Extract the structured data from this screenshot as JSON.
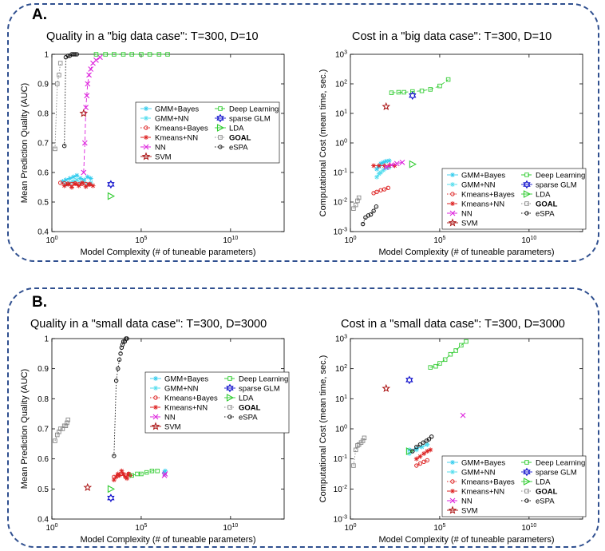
{
  "panels": [
    {
      "letter": "A.",
      "charts": [
        {
          "type": "scatter",
          "title": "Quality in a \"big data case\": T=300, D=10",
          "xlabel": "Model Complexity (# of tuneable parameters)",
          "ylabel": "Mean Prediction Quality (AUC)",
          "xscale": "log",
          "xlim": [
            1,
            10000000000000
          ],
          "xticks": [
            "10^0",
            "10^5",
            "10^10"
          ],
          "yscale": "linear",
          "ylim": [
            0.4,
            1.0
          ],
          "yticks": [
            "0.4",
            "0.5",
            "0.6",
            "0.7",
            "0.8",
            "0.9",
            "1"
          ],
          "legend_position": "center-right",
          "series": [
            {
              "name": "GMM+Bayes",
              "x": [
                4,
                6,
                10,
                16,
                25,
                40,
                63,
                100,
                150
              ],
              "y": [
                0.57,
                0.575,
                0.58,
                0.585,
                0.59,
                0.58,
                0.575,
                0.585,
                0.58
              ]
            },
            {
              "name": "GMM+NN",
              "x": [
                6,
                10,
                16,
                25,
                40,
                63,
                100,
                150
              ],
              "y": [
                0.56,
                0.565,
                0.57,
                0.575,
                0.565,
                0.57,
                0.56,
                0.565
              ]
            },
            {
              "name": "Kmeans+Bayes",
              "x": [
                3,
                5,
                8,
                13,
                20,
                32,
                50,
                80,
                130
              ],
              "y": [
                0.565,
                0.563,
                0.562,
                0.561,
                0.563,
                0.56,
                0.562,
                0.561,
                0.56
              ]
            },
            {
              "name": "Kmeans+NN",
              "x": [
                5,
                8,
                13,
                20,
                32,
                50,
                80,
                130,
                200
              ],
              "y": [
                0.555,
                0.56,
                0.55,
                0.562,
                0.555,
                0.565,
                0.552,
                0.56,
                0.555
              ]
            },
            {
              "name": "NN",
              "x": [
                60,
                70,
                80,
                90,
                100,
                120,
                150,
                200,
                300,
                500
              ],
              "y": [
                0.6,
                0.7,
                0.82,
                0.86,
                0.9,
                0.93,
                0.95,
                0.97,
                0.98,
                0.99
              ]
            },
            {
              "name": "SVM",
              "x": [
                60
              ],
              "y": [
                0.8
              ]
            },
            {
              "name": "Deep Learning",
              "x": [
                300,
                1000,
                3000,
                10000,
                30000,
                100000,
                300000,
                1000000,
                3000000
              ],
              "y": [
                1.0,
                1.0,
                1.0,
                1.0,
                1.0,
                1.0,
                1.0,
                1.0,
                1.0
              ]
            },
            {
              "name": "sparse GLM",
              "x": [
                2000
              ],
              "y": [
                0.56
              ]
            },
            {
              "name": "LDA",
              "x": [
                2000
              ],
              "y": [
                0.52
              ]
            },
            {
              "name": "GOAL",
              "x": [
                1.5,
                2,
                2.5,
                3
              ],
              "y": [
                0.68,
                0.9,
                0.93,
                0.97
              ]
            },
            {
              "name": "eSPA",
              "x": [
                5,
                6,
                8,
                10,
                13,
                16,
                20,
                25
              ],
              "y": [
                0.69,
                0.99,
                0.995,
                0.995,
                1.0,
                1.0,
                1.0,
                1.0
              ]
            }
          ]
        },
        {
          "type": "scatter",
          "title": "Cost in a \"big data case\": T=300, D=10",
          "xlabel": "Model Complexity (# of tuneable parameters)",
          "ylabel": "Computational Cost (mean time, sec.)",
          "xscale": "log",
          "xlim": [
            1,
            10000000000000
          ],
          "xticks": [
            "10^0",
            "10^5",
            "10^10"
          ],
          "yscale": "log",
          "ylim": [
            0.001,
            1000
          ],
          "yticks": [
            "10^-3",
            "10^-2",
            "10^-1",
            "10^0",
            "10^1",
            "10^2",
            "10^3"
          ],
          "legend_position": "bottom-center",
          "series": [
            {
              "name": "GMM+Bayes",
              "x": [
                30,
                40,
                50,
                70,
                100,
                150
              ],
              "y": [
                0.13,
                0.16,
                0.2,
                0.22,
                0.24,
                0.25
              ]
            },
            {
              "name": "GMM+NN",
              "x": [
                30,
                40,
                50,
                70,
                100,
                150
              ],
              "y": [
                0.07,
                0.09,
                0.1,
                0.12,
                0.14,
                0.15
              ]
            },
            {
              "name": "Kmeans+Bayes",
              "x": [
                20,
                30,
                50,
                80,
                130
              ],
              "y": [
                0.02,
                0.022,
                0.025,
                0.027,
                0.03
              ]
            },
            {
              "name": "Kmeans+NN",
              "x": [
                20,
                40,
                80,
                150,
                300
              ],
              "y": [
                0.17,
                0.17,
                0.17,
                0.17,
                0.17
              ]
            },
            {
              "name": "NN",
              "x": [
                100,
                200,
                400,
                800
              ],
              "y": [
                0.15,
                0.18,
                0.2,
                0.22
              ]
            },
            {
              "name": "SVM",
              "x": [
                100
              ],
              "y": [
                17
              ]
            },
            {
              "name": "Deep Learning",
              "x": [
                200,
                500,
                1000,
                3000,
                10000,
                30000,
                100000,
                300000
              ],
              "y": [
                50,
                52,
                52,
                55,
                58,
                65,
                85,
                140
              ]
            },
            {
              "name": "sparse GLM",
              "x": [
                3000
              ],
              "y": [
                40
              ]
            },
            {
              "name": "LDA",
              "x": [
                3000
              ],
              "y": [
                0.19
              ]
            },
            {
              "name": "GOAL",
              "x": [
                1.5,
                2,
                2.5,
                3
              ],
              "y": [
                0.006,
                0.008,
                0.011,
                0.014
              ]
            },
            {
              "name": "eSPA",
              "x": [
                5,
                7,
                10,
                14,
                20,
                28
              ],
              "y": [
                0.0018,
                0.003,
                0.0035,
                0.0038,
                0.005,
                0.007
              ]
            }
          ]
        }
      ]
    },
    {
      "letter": "B.",
      "charts": [
        {
          "type": "scatter",
          "title": "Quality in a \"small data case\": T=300, D=3000",
          "xlabel": "Model Complexity (# of tuneable parameters)",
          "ylabel": "Mean Prediction Quality (AUC)",
          "xscale": "log",
          "xlim": [
            1,
            10000000000000
          ],
          "xticks": [
            "10^0",
            "10^5",
            "10^10"
          ],
          "yscale": "linear",
          "ylim": [
            0.4,
            1.0
          ],
          "yticks": [
            "0.4",
            "0.5",
            "0.6",
            "0.7",
            "0.8",
            "0.9",
            "1"
          ],
          "legend_position": "center-right",
          "series": [
            {
              "name": "GMM+Bayes",
              "x": [
                2000000,
                2200000
              ],
              "y": [
                0.555,
                0.56
              ]
            },
            {
              "name": "GMM+NN",
              "x": [
                2000000
              ],
              "y": [
                0.55
              ]
            },
            {
              "name": "Kmeans+Bayes",
              "x": [
                3000,
                5000,
                8000,
                13000,
                20000
              ],
              "y": [
                0.54,
                0.545,
                0.55,
                0.545,
                0.55
              ]
            },
            {
              "name": "Kmeans+NN",
              "x": [
                3000,
                4000,
                5000,
                6000,
                8000,
                10000,
                13000,
                16000,
                20000,
                25000
              ],
              "y": [
                0.53,
                0.54,
                0.55,
                0.545,
                0.56,
                0.55,
                0.54,
                0.535,
                0.55,
                0.545
              ]
            },
            {
              "name": "NN",
              "x": [
                2000000,
                2200000
              ],
              "y": [
                0.545,
                0.55
              ]
            },
            {
              "name": "SVM",
              "x": [
                100
              ],
              "y": [
                0.505
              ]
            },
            {
              "name": "Deep Learning",
              "x": [
                30000,
                60000,
                100000,
                200000,
                400000,
                800000
              ],
              "y": [
                0.545,
                0.55,
                0.55,
                0.555,
                0.56,
                0.56
              ]
            },
            {
              "name": "sparse GLM",
              "x": [
                2000
              ],
              "y": [
                0.47
              ]
            },
            {
              "name": "LDA",
              "x": [
                2000
              ],
              "y": [
                0.5
              ]
            },
            {
              "name": "GOAL",
              "x": [
                1.5,
                2,
                2.5,
                3,
                4,
                5,
                6,
                7,
                8
              ],
              "y": [
                0.66,
                0.68,
                0.69,
                0.7,
                0.7,
                0.71,
                0.71,
                0.72,
                0.73
              ]
            },
            {
              "name": "eSPA",
              "x": [
                3000,
                4000,
                5000,
                6000,
                7000,
                8000,
                9000,
                10000,
                12000,
                14000,
                16000
              ],
              "y": [
                0.61,
                0.86,
                0.9,
                0.93,
                0.95,
                0.97,
                0.98,
                0.99,
                0.99,
                1.0,
                1.0
              ]
            }
          ]
        },
        {
          "type": "scatter",
          "title": "Cost in a \"small data case\": T=300, D=3000",
          "xlabel": "Model Complexity (# of tuneable parameters)",
          "ylabel": "Computational Cost (mean time, sec.)",
          "xscale": "log",
          "xlim": [
            1,
            10000000000000
          ],
          "xticks": [
            "10^0",
            "10^5",
            "10^10"
          ],
          "yscale": "log",
          "ylim": [
            0.001,
            1000
          ],
          "yticks": [
            "10^-3",
            "10^-2",
            "10^-1",
            "10^0",
            "10^1",
            "10^2",
            "10^3"
          ],
          "legend_position": "bottom-center",
          "series": [
            {
              "name": "GMM+Bayes",
              "x": [
                2000,
                5000,
                10000,
                20000
              ],
              "y": [
                0.2,
                0.22,
                0.25,
                0.3
              ]
            },
            {
              "name": "GMM+NN",
              "x": [
                2000,
                5000,
                10000,
                20000
              ],
              "y": [
                0.15,
                0.2,
                0.25,
                0.3
              ]
            },
            {
              "name": "Kmeans+Bayes",
              "x": [
                5000,
                8000,
                13000,
                20000
              ],
              "y": [
                0.06,
                0.07,
                0.08,
                0.09
              ]
            },
            {
              "name": "Kmeans+NN",
              "x": [
                5000,
                8000,
                13000,
                20000,
                30000
              ],
              "y": [
                0.1,
                0.12,
                0.15,
                0.18,
                0.2
              ]
            },
            {
              "name": "NN",
              "x": [
                2000000
              ],
              "y": [
                2.8
              ]
            },
            {
              "name": "SVM",
              "x": [
                100
              ],
              "y": [
                22
              ]
            },
            {
              "name": "Deep Learning",
              "x": [
                30000,
                60000,
                100000,
                200000,
                400000,
                800000,
                1600000,
                3000000
              ],
              "y": [
                110,
                120,
                150,
                200,
                300,
                400,
                600,
                800
              ]
            },
            {
              "name": "sparse GLM",
              "x": [
                2000
              ],
              "y": [
                42
              ]
            },
            {
              "name": "LDA",
              "x": [
                2000
              ],
              "y": [
                0.18
              ]
            },
            {
              "name": "GOAL",
              "x": [
                1.5,
                2,
                2.5,
                3,
                4,
                5,
                6
              ],
              "y": [
                0.06,
                0.2,
                0.28,
                0.3,
                0.35,
                0.4,
                0.5
              ]
            },
            {
              "name": "eSPA",
              "x": [
                3000,
                5000,
                8000,
                12000,
                18000,
                25000,
                35000
              ],
              "y": [
                0.18,
                0.25,
                0.3,
                0.35,
                0.4,
                0.45,
                0.55
              ]
            }
          ]
        }
      ]
    }
  ],
  "series_styles": [
    {
      "name": "GMM+Bayes",
      "color": "#33ccee",
      "marker": "star",
      "dash": ""
    },
    {
      "name": "GMM+NN",
      "color": "#55ddee",
      "marker": "star",
      "dash": "5,3"
    },
    {
      "name": "Kmeans+Bayes",
      "color": "#dd2222",
      "marker": "circle",
      "dash": "1.5,2"
    },
    {
      "name": "Kmeans+NN",
      "color": "#dd2222",
      "marker": "star",
      "dash": "5,3"
    },
    {
      "name": "NN",
      "color": "#dd22dd",
      "marker": "x",
      "dash": "5,3"
    },
    {
      "name": "SVM",
      "color": "#aa1111",
      "marker": "pentagram",
      "dash": ""
    },
    {
      "name": "Deep Learning",
      "color": "#33cc33",
      "marker": "square",
      "dash": "5,3"
    },
    {
      "name": "sparse GLM",
      "color": "#1111cc",
      "marker": "hexagram",
      "dash": ""
    },
    {
      "name": "LDA",
      "color": "#33cc33",
      "marker": "triangle",
      "dash": ""
    },
    {
      "name": "GOAL",
      "color": "#888888",
      "marker": "square",
      "dash": "1.5,2"
    },
    {
      "name": "eSPA",
      "color": "#111111",
      "marker": "circle",
      "dash": "1.5,2"
    }
  ]
}
